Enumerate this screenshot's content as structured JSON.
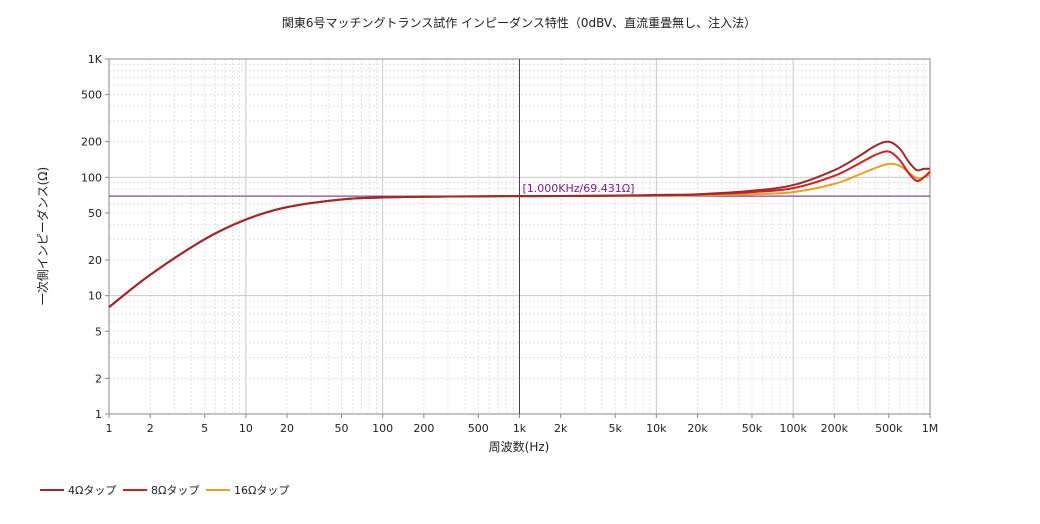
{
  "chart_data": {
    "type": "line",
    "title": "関東6号マッチングトランス試作 インピーダンス特性（0dBV、直流重畳無し、注入法）",
    "xlabel": "周波数(Hz)",
    "ylabel": "一次側インピーダンス(Ω)",
    "xscale": "log",
    "yscale": "log",
    "xlim": [
      1,
      1000000
    ],
    "ylim": [
      1,
      1000
    ],
    "x_ticks": [
      {
        "v": 1,
        "label": "1"
      },
      {
        "v": 2,
        "label": "2"
      },
      {
        "v": 5,
        "label": "5"
      },
      {
        "v": 10,
        "label": "10"
      },
      {
        "v": 20,
        "label": "20"
      },
      {
        "v": 50,
        "label": "50"
      },
      {
        "v": 100,
        "label": "100"
      },
      {
        "v": 200,
        "label": "200"
      },
      {
        "v": 500,
        "label": "500"
      },
      {
        "v": 1000,
        "label": "1k"
      },
      {
        "v": 2000,
        "label": "2k"
      },
      {
        "v": 5000,
        "label": "5k"
      },
      {
        "v": 10000,
        "label": "10k"
      },
      {
        "v": 20000,
        "label": "20k"
      },
      {
        "v": 50000,
        "label": "50k"
      },
      {
        "v": 100000,
        "label": "100k"
      },
      {
        "v": 200000,
        "label": "200k"
      },
      {
        "v": 500000,
        "label": "500k"
      },
      {
        "v": 1000000,
        "label": "1M"
      }
    ],
    "y_ticks": [
      {
        "v": 1,
        "label": "1"
      },
      {
        "v": 2,
        "label": "2"
      },
      {
        "v": 5,
        "label": "5"
      },
      {
        "v": 10,
        "label": "10"
      },
      {
        "v": 20,
        "label": "20"
      },
      {
        "v": 50,
        "label": "50"
      },
      {
        "v": 100,
        "label": "100"
      },
      {
        "v": 200,
        "label": "200"
      },
      {
        "v": 500,
        "label": "500"
      },
      {
        "v": 1000,
        "label": "1K"
      }
    ],
    "grid": true,
    "legend_position": "bottom-left",
    "cursor": {
      "x": 1000,
      "y": 69.431,
      "label": "[1.000KHz/69.431Ω]",
      "color": "#7b1f8c"
    },
    "series": [
      {
        "name": "4Ωタップ",
        "color": "#a3272a",
        "x": [
          1,
          2,
          5,
          10,
          20,
          50,
          100,
          200,
          500,
          1000,
          2000,
          5000,
          10000,
          20000,
          50000,
          100000,
          200000,
          300000,
          400000,
          500000,
          600000,
          700000,
          800000,
          900000,
          1000000
        ],
        "y": [
          8,
          15,
          30,
          44,
          56,
          65,
          67.5,
          68.5,
          69,
          69.4,
          69.5,
          70,
          71,
          72,
          77,
          86,
          115,
          150,
          185,
          200,
          175,
          135,
          115,
          118,
          118
        ]
      },
      {
        "name": "8Ωタップ",
        "color": "#d21f1f",
        "x": [
          1,
          2,
          5,
          10,
          20,
          50,
          100,
          200,
          500,
          1000,
          2000,
          5000,
          10000,
          20000,
          50000,
          100000,
          200000,
          300000,
          400000,
          500000,
          600000,
          700000,
          800000,
          900000,
          1000000
        ],
        "y": [
          8,
          15,
          30,
          44,
          56,
          65,
          67.5,
          68.5,
          69,
          69.4,
          69.5,
          70,
          70.5,
          71.5,
          75,
          81,
          103,
          130,
          155,
          165,
          140,
          108,
          93,
          100,
          112
        ]
      },
      {
        "name": "16Ωタップ",
        "color": "#e8a11a",
        "x": [
          1,
          2,
          5,
          10,
          20,
          50,
          100,
          200,
          500,
          1000,
          2000,
          5000,
          10000,
          20000,
          50000,
          100000,
          200000,
          300000,
          400000,
          500000,
          600000,
          700000,
          800000,
          900000,
          1000000
        ],
        "y": [
          8,
          15,
          30,
          44,
          56,
          65,
          67.5,
          68.5,
          69,
          69.4,
          69.5,
          69.8,
          70,
          70.5,
          72,
          75,
          88,
          105,
          120,
          130,
          125,
          110,
          98,
          100,
          106
        ]
      }
    ]
  }
}
